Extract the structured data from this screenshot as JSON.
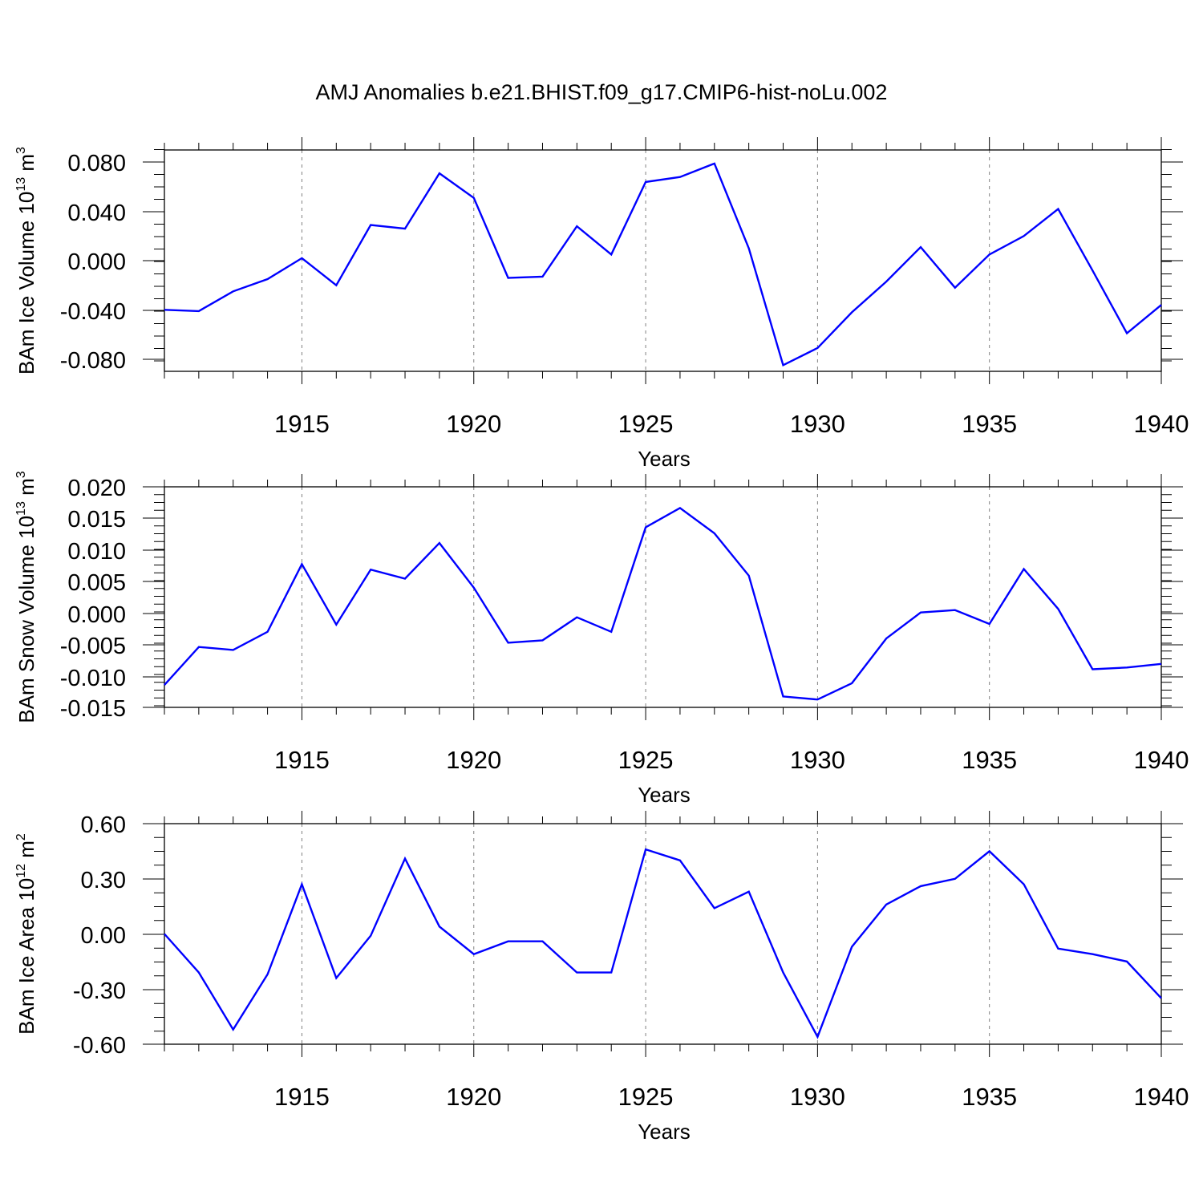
{
  "title": "AMJ Anomalies b.e21.BHIST.f09_g17.CMIP6-hist-noLu.002",
  "colors": {
    "line": "#0000ff",
    "axis": "#000000",
    "grid": "#808080"
  },
  "chart_data": [
    {
      "type": "line",
      "ylabel": "BAm Ice Volume 10",
      "ylabel_exp": "13",
      "ylabel_unit": " m",
      "ylabel_unit_exp": "3",
      "xlabel": "Years",
      "xlim": [
        1911,
        1940
      ],
      "ylim": [
        -0.09,
        0.09
      ],
      "x_ticks": [
        "1915",
        "1920",
        "1925",
        "1930",
        "1935",
        "1940"
      ],
      "y_ticks": [
        "0.080",
        "0.040",
        "0.000",
        "-0.040",
        "-0.080"
      ],
      "grid": "vertical dashed at major x ticks",
      "x": [
        1911,
        1912,
        1913,
        1914,
        1915,
        1916,
        1917,
        1918,
        1919,
        1920,
        1921,
        1922,
        1923,
        1924,
        1925,
        1926,
        1927,
        1928,
        1929,
        1930,
        1931,
        1932,
        1933,
        1934,
        1935,
        1936,
        1937,
        1938,
        1939,
        1940
      ],
      "values": [
        -0.04,
        -0.041,
        -0.025,
        -0.015,
        0.002,
        -0.02,
        0.029,
        0.026,
        0.071,
        0.051,
        -0.014,
        -0.013,
        0.028,
        0.005,
        0.064,
        0.068,
        0.079,
        0.01,
        -0.085,
        -0.071,
        -0.042,
        -0.017,
        0.011,
        -0.022,
        0.005,
        0.02,
        0.042,
        -0.008,
        -0.059,
        -0.036
      ]
    },
    {
      "type": "line",
      "ylabel": "BAm Snow Volume 10",
      "ylabel_exp": "13",
      "ylabel_unit": " m",
      "ylabel_unit_exp": "3",
      "xlabel": "Years",
      "xlim": [
        1911,
        1940
      ],
      "ylim": [
        -0.015,
        0.0215
      ],
      "x_ticks": [
        "1915",
        "1920",
        "1925",
        "1930",
        "1935",
        "1940"
      ],
      "y_ticks": [
        "0.020",
        "0.015",
        "0.010",
        "0.005",
        "0.000",
        "-0.005",
        "-0.010",
        "-0.015"
      ],
      "grid": "vertical dashed at major x ticks",
      "x": [
        1911,
        1912,
        1913,
        1914,
        1915,
        1916,
        1917,
        1918,
        1919,
        1920,
        1921,
        1922,
        1923,
        1924,
        1925,
        1926,
        1927,
        1928,
        1929,
        1930,
        1931,
        1932,
        1933,
        1934,
        1935,
        1936,
        1937,
        1938,
        1939,
        1940
      ],
      "values": [
        -0.0113,
        -0.005,
        -0.0055,
        -0.0025,
        0.0087,
        -0.0013,
        0.0078,
        0.0063,
        0.0122,
        0.0048,
        -0.0043,
        -0.0039,
        -0.0001,
        -0.0025,
        0.0148,
        0.018,
        0.0138,
        0.0068,
        -0.0132,
        -0.0137,
        -0.011,
        -0.0036,
        0.0007,
        0.0011,
        -0.0012,
        0.0079,
        0.0013,
        -0.0087,
        -0.0084,
        -0.0078
      ]
    },
    {
      "type": "line",
      "ylabel": "BAm Ice Area 10",
      "ylabel_exp": "12",
      "ylabel_unit": " m",
      "ylabel_unit_exp": "2",
      "xlabel": "Years",
      "xlim": [
        1911,
        1940
      ],
      "ylim": [
        -0.6,
        0.6
      ],
      "x_ticks": [
        "1915",
        "1920",
        "1925",
        "1930",
        "1935",
        "1940"
      ],
      "y_ticks": [
        "0.60",
        "0.30",
        "0.00",
        "-0.30",
        "-0.60"
      ],
      "grid": "vertical dashed at major x ticks",
      "x": [
        1911,
        1912,
        1913,
        1914,
        1915,
        1916,
        1917,
        1918,
        1919,
        1920,
        1921,
        1922,
        1923,
        1924,
        1925,
        1926,
        1927,
        1928,
        1929,
        1930,
        1931,
        1932,
        1933,
        1934,
        1935,
        1936,
        1937,
        1938,
        1939,
        1940
      ],
      "values": [
        0.0,
        -0.21,
        -0.52,
        -0.22,
        0.27,
        -0.24,
        -0.01,
        0.41,
        0.04,
        -0.11,
        -0.04,
        -0.04,
        -0.21,
        -0.21,
        0.46,
        0.4,
        0.14,
        0.23,
        -0.21,
        -0.56,
        -0.07,
        0.16,
        0.26,
        0.3,
        0.45,
        0.27,
        -0.08,
        -0.11,
        -0.15,
        -0.35
      ]
    }
  ]
}
